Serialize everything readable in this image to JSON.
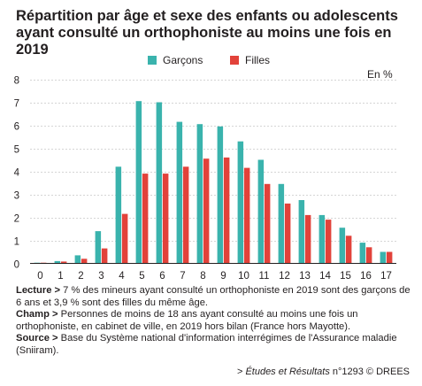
{
  "title": {
    "line1": "Répartition par âge et sexe des enfants ou adolescents",
    "line2": "ayant consulté un orthophoniste au moins une fois en 2019"
  },
  "colors": {
    "garcons": "#3ab3ad",
    "filles": "#e2423a",
    "axis": "#231f20",
    "grid": "#c8c8c8"
  },
  "unit_label": "En %",
  "chart_data": {
    "type": "bar",
    "categories": [
      "0",
      "1",
      "2",
      "3",
      "4",
      "5",
      "6",
      "7",
      "8",
      "9",
      "10",
      "11",
      "12",
      "13",
      "14",
      "15",
      "16",
      "17"
    ],
    "series": [
      {
        "name": "Garçons",
        "values": [
          0.03,
          0.1,
          0.35,
          1.4,
          4.2,
          7.05,
          7.0,
          6.15,
          6.05,
          5.95,
          5.3,
          4.5,
          3.45,
          2.75,
          2.1,
          1.55,
          0.9,
          0.5
        ]
      },
      {
        "name": "Filles",
        "values": [
          0.03,
          0.08,
          0.2,
          0.65,
          2.15,
          3.9,
          3.9,
          4.2,
          4.55,
          4.6,
          4.15,
          3.45,
          2.6,
          2.1,
          1.9,
          1.2,
          0.7,
          0.5
        ]
      }
    ],
    "ylim": [
      0,
      8
    ],
    "yticks": [
      0,
      1,
      2,
      3,
      4,
      5,
      6,
      7,
      8
    ],
    "grid": true,
    "legend_position": "top-center"
  },
  "notes": {
    "lecture_label": "Lecture >",
    "lecture_text": " 7 % des mineurs ayant consulté un orthophoniste en 2019 sont des garçons de 6 ans et 3,9 % sont des filles du même âge.",
    "champ_label": "Champ >",
    "champ_text": " Personnes de moins de 18 ans ayant consulté au moins une fois un orthophoniste, en cabinet de ville, en 2019 hors bilan (France hors Mayotte).",
    "source_label": "Source >",
    "source_text": " Base du Système national d'information interrégimes de l'Assurance maladie (Sniiram)."
  },
  "footer": {
    "prefix": "> ",
    "publication": "Études et Résultats",
    "suffix": " n°1293 © DREES"
  }
}
